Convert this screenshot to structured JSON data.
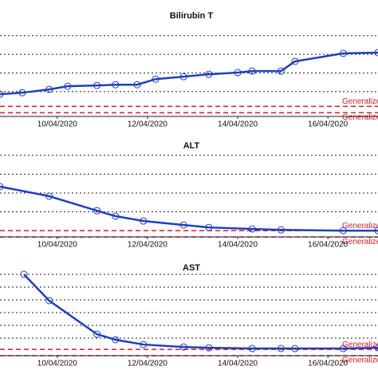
{
  "chart_data": [
    {
      "type": "line",
      "title": "Bilirubin T",
      "color": "#1f3fbf",
      "grid": true,
      "x": [
        8.73,
        9.22,
        9.82,
        10.23,
        10.88,
        11.29,
        11.77,
        12.18,
        12.8,
        13.36,
        14.0,
        14.32,
        14.96,
        15.27,
        16.34,
        17.11
      ],
      "values": [
        0.86,
        0.94,
        1.12,
        1.29,
        1.33,
        1.37,
        1.37,
        1.67,
        1.8,
        1.93,
        2.02,
        2.1,
        2.1,
        2.62,
        3.05,
        3.09
      ],
      "xlim": [
        8.73,
        17.11
      ],
      "ylim": [
        -0.5,
        4.5
      ],
      "yticks": [
        1,
        2,
        3,
        4
      ],
      "xticks": [
        {
          "value": 10,
          "label": "10/04/2020"
        },
        {
          "value": 12,
          "label": "12/04/2020"
        },
        {
          "value": 14,
          "label": "14/04/2020"
        },
        {
          "value": 16,
          "label": "16/04/2020"
        }
      ],
      "reference_lines": [
        {
          "value": 0.21,
          "label": "Generalized",
          "color": "#e0182a"
        },
        {
          "value": -0.13,
          "label": "Generalized",
          "color": "#e0182a"
        }
      ]
    },
    {
      "type": "line",
      "title": "ALT",
      "color": "#1f3fbf",
      "grid": true,
      "x": [
        8.73,
        9.82,
        10.88,
        11.29,
        11.91,
        12.8,
        13.36,
        14.32,
        14.96,
        16.34,
        17.11
      ],
      "values": [
        2.34,
        1.83,
        1.06,
        0.77,
        0.51,
        0.3,
        0.17,
        0.09,
        0.04,
        0,
        0
      ],
      "xlim": [
        8.73,
        17.11
      ],
      "ylim": [
        -0.5,
        4.5
      ],
      "yticks": [
        1,
        2,
        3,
        4
      ],
      "xticks": [
        {
          "value": 10,
          "label": "10/04/2020"
        },
        {
          "value": 12,
          "label": "12/04/2020"
        },
        {
          "value": 14,
          "label": "14/04/2020"
        },
        {
          "value": 16,
          "label": "16/04/2020"
        }
      ],
      "reference_lines": [
        {
          "value": 0,
          "label": "Generalized",
          "color": "#e0182a"
        },
        {
          "value": -0.34,
          "label": "Generalized",
          "color": "#e0182a"
        }
      ]
    },
    {
      "type": "line",
      "title": "AST",
      "color": "#1f3fbf",
      "grid": true,
      "x": [
        9.26,
        9.82,
        10.88,
        11.29,
        11.91,
        12.8,
        13.36,
        14.32,
        14.96,
        15.27,
        16.34,
        17.11
      ],
      "values": [
        6.0,
        3.94,
        1.31,
        0.88,
        0.5,
        0.31,
        0.25,
        0.19,
        0.19,
        0.19,
        0.19,
        0.25
      ],
      "xlim": [
        8.73,
        17.11
      ],
      "ylim": [
        -0.62,
        6.25
      ],
      "yticks": [
        1,
        2,
        3,
        4,
        5,
        6
      ],
      "xticks": [
        {
          "value": 10,
          "label": "10/04/2020"
        },
        {
          "value": 12,
          "label": "12/04/2020"
        },
        {
          "value": 14,
          "label": "14/04/2020"
        },
        {
          "value": 16,
          "label": "16/04/2020"
        }
      ],
      "reference_lines": [
        {
          "value": 0.12,
          "label": "Generalized",
          "color": "#e0182a"
        },
        {
          "value": -0.37,
          "label": "Generalized",
          "color": "#e0182a"
        }
      ]
    }
  ]
}
